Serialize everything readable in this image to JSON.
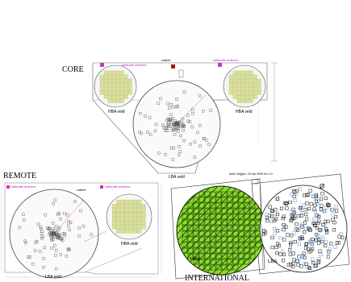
{
  "panels": {
    "core": {
      "title": "CORE",
      "hba_left_label": "HBA veld",
      "hba_right_label": "HBA veld",
      "lba_label": "LBA veld",
      "calib_left": "calibratie antenne",
      "calib_right": "calibratie antenne",
      "cabinet": "cabinet"
    },
    "remote": {
      "title": "REMOTE",
      "calib_left": "calibratie antenne",
      "calib_right": "calibratie antenne",
      "cabinet": "cabinet",
      "hba_label": "HBA veld",
      "lba_label": "LBA veld"
    },
    "international": {
      "title": "INTERNATIONAL",
      "hba_label": "HBA",
      "lba_label": "LBA",
      "header_note": "Antoi Huijgen, 23 mei 2008 rev 1.0",
      "north_symbol": "Ø"
    }
  },
  "colors": {
    "hba_tile": "#e8d9a0",
    "hba_bg": "#a8d878",
    "lba_dot": "#555555",
    "calib": "#cc33cc",
    "cabinet": "#a01818",
    "green_field": "#7fd420",
    "lba_blue": "#5a9ad8"
  }
}
